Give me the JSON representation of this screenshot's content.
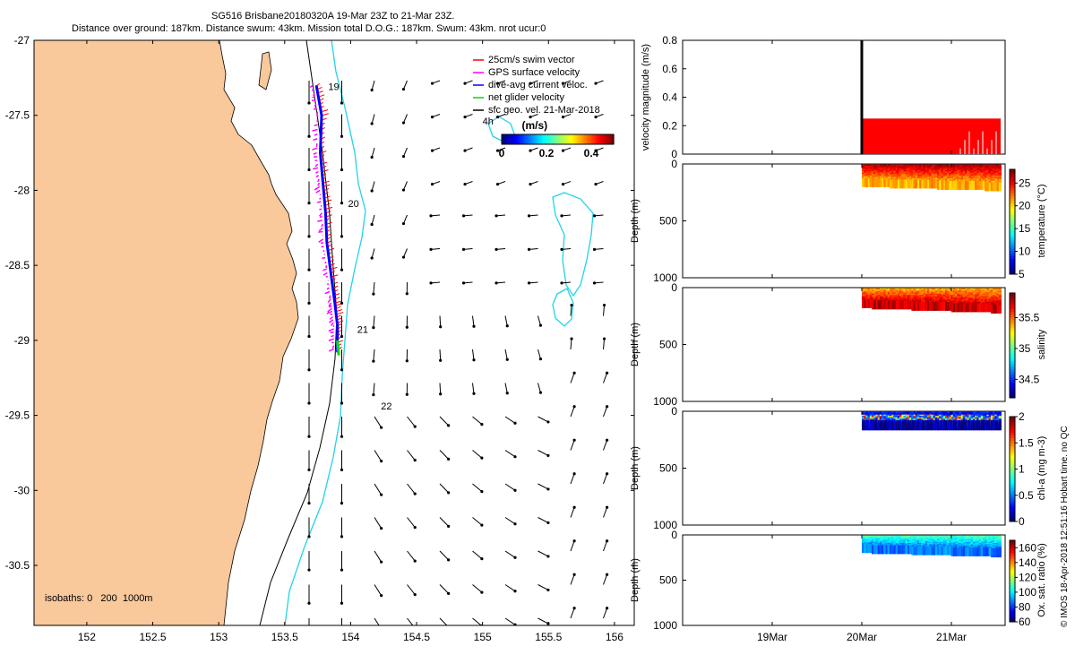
{
  "title_line1": "SG516 Brisbane20180320A 19-Mar 23Z to 21-Mar 23Z.",
  "title_line2": "Distance over ground: 187km. Distance swum: 43km. Mission total D.O.G.: 187km. Swum: 43km. nrot ucur:0",
  "side_note": "© IMOS 18-Apr-2018 12:51:16 Hobart time. no QC",
  "colors": {
    "land": "#f9c89b",
    "isobath200": "#000000",
    "isobath1000": "#22d3e6",
    "arrow": "#000000",
    "swim": "#ff0000",
    "gps": "#ff00ff",
    "dive": "#0000ff",
    "net": "#00dd00"
  },
  "chart_data": [
    {
      "type": "map",
      "xlim": [
        151.6,
        156.15
      ],
      "ylim": [
        -30.9,
        -27
      ],
      "xticks": [
        152,
        152.5,
        153,
        153.5,
        154,
        154.5,
        155,
        155.5,
        156
      ],
      "yticks": [
        -27,
        -27.5,
        -28,
        -28.5,
        -29,
        -29.5,
        -30,
        -30.5
      ],
      "legend": {
        "placement": "top-right",
        "entries": [
          {
            "label": "25cm/s swim vector",
            "color": "#ff0000"
          },
          {
            "label": "GPS surface velocity",
            "color": "#ff00ff"
          },
          {
            "label": "dive-avg current veloc.",
            "color": "#0000ff"
          },
          {
            "label": "net glider velocity",
            "color": "#00dd00"
          },
          {
            "label": "sfc geo. vel. 21-Mar-2018",
            "color": "#000000"
          }
        ]
      },
      "colorbar": {
        "label": "(m/s)",
        "ticks": [
          0,
          0.2,
          0.4
        ],
        "range": [
          0,
          0.5
        ]
      },
      "isobaths_label": "isobaths: 0   200  1000m",
      "day_labels": [
        {
          "text": "19",
          "lon": 153.83,
          "lat": -27.33
        },
        {
          "text": "20",
          "lon": 153.98,
          "lat": -28.11
        },
        {
          "text": "21",
          "lon": 154.05,
          "lat": -28.95
        },
        {
          "text": "22",
          "lon": 154.23,
          "lat": -29.46
        },
        {
          "text": "4h",
          "lon": 155.0,
          "lat": -27.56
        }
      ],
      "glider_track": [
        [
          153.74,
          -27.3
        ],
        [
          153.78,
          -27.5
        ],
        [
          153.77,
          -27.75
        ],
        [
          153.79,
          -27.95
        ],
        [
          153.81,
          -28.15
        ],
        [
          153.82,
          -28.35
        ],
        [
          153.85,
          -28.55
        ],
        [
          153.88,
          -28.75
        ],
        [
          153.9,
          -28.9
        ],
        [
          153.9,
          -29.08
        ]
      ]
    },
    {
      "type": "scatter",
      "ylabel": "velocity magnitude (m/s)",
      "ylim": [
        0,
        0.8
      ],
      "yticks": [
        0,
        0.2,
        0.4,
        0.6,
        0.8
      ],
      "series_color": "#ff0000",
      "typical_value": 0.25,
      "spike_value": 0.8
    },
    {
      "type": "heatmap",
      "ylabel": "Depth (m)",
      "yticks": [
        0,
        500,
        1000
      ],
      "colorbar_label": "temperature (°C)",
      "colorbar_range": [
        5,
        28
      ],
      "colorbar_ticks": [
        5,
        10,
        15,
        20,
        25
      ],
      "surface_value": 27,
      "deep_value": 21
    },
    {
      "type": "heatmap",
      "ylabel": "Depth (m)",
      "yticks": [
        0,
        500,
        1000
      ],
      "colorbar_label": "salinity",
      "colorbar_range": [
        34.2,
        35.9
      ],
      "colorbar_ticks": [
        34.5,
        35,
        35.5
      ],
      "surface_value": 35.4,
      "deep_value": 35.8
    },
    {
      "type": "heatmap",
      "ylabel": "Depth (m)",
      "yticks": [
        0,
        500,
        1000
      ],
      "colorbar_label": "chl-a (mg m-3)",
      "colorbar_range": [
        0,
        2
      ],
      "colorbar_ticks": [
        0,
        0.5,
        1,
        1.5,
        2
      ],
      "surface_value": 0.3,
      "deep_value": 0.05
    },
    {
      "type": "heatmap",
      "ylabel": "Depth (m)",
      "yticks": [
        0,
        500,
        1000
      ],
      "colorbar_label": "Ox. sat. ratio (%)",
      "colorbar_range": [
        60,
        170
      ],
      "colorbar_ticks": [
        60,
        80,
        100,
        120,
        140,
        160
      ],
      "surface_value": 110,
      "deep_value": 85,
      "xticks": [
        "19Mar",
        "20Mar",
        "21Mar"
      ]
    }
  ]
}
